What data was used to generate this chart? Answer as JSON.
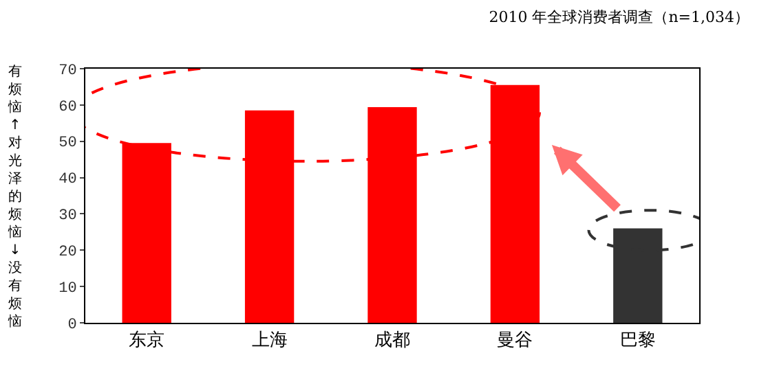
{
  "chart_data": {
    "type": "bar",
    "title": "2010 年全球消费者调查（n=1,034）",
    "ylabel": "有烦恼↑对光泽的烦恼↓没有烦恼",
    "categories": [
      "东京",
      "上海",
      "成都",
      "曼谷",
      "巴黎"
    ],
    "values": [
      49.5,
      58.5,
      59.4,
      65.5,
      26
    ],
    "colors": [
      "#ff0000",
      "#ff0000",
      "#ff0000",
      "#ff0000",
      "#333333"
    ],
    "ylim": [
      0,
      70
    ],
    "yticks": [
      0,
      10,
      20,
      30,
      40,
      50,
      60,
      70
    ]
  }
}
